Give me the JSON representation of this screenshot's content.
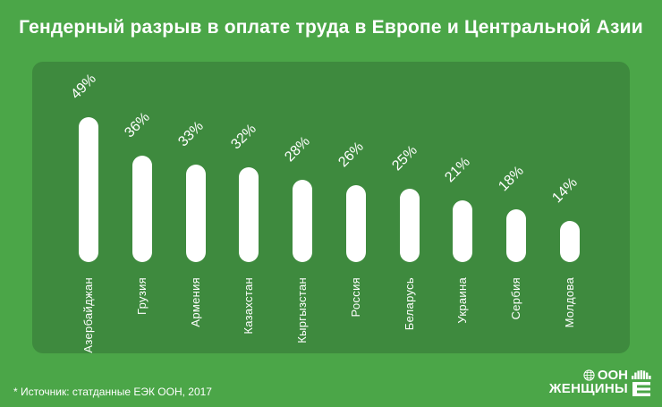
{
  "title": "Гендерный разрыв в оплате труда в Европе и Центральной Азии",
  "source_note": "* Источник: статданные ЕЭК ООН, 2017",
  "logo": {
    "line1": "ООН",
    "line2": "ЖЕНЩИНЫ",
    "emblem_icon": "un-globe-icon",
    "mark_icon": "un-women-mark-icon"
  },
  "colors": {
    "background": "#4BA648",
    "panel": "#3E8A3E",
    "bar": "#FFFFFF",
    "text": "#FFFFFF"
  },
  "chart_data": {
    "type": "bar",
    "title": "Гендерный разрыв в оплате труда в Европе и Центральной Азии",
    "categories": [
      "Азербайджан",
      "Грузия",
      "Армения",
      "Казахстан",
      "Кыргызстан",
      "Россия",
      "Беларусь",
      "Украина",
      "Сербия",
      "Молдова"
    ],
    "values": [
      49,
      36,
      33,
      32,
      28,
      26,
      25,
      21,
      18,
      14
    ],
    "value_suffix": "%",
    "xlabel": "",
    "ylabel": "",
    "ylim": [
      0,
      50
    ],
    "grid": false,
    "legend": "none",
    "bar_color": "#FFFFFF",
    "value_label_rotation_deg": -45,
    "category_label_rotation_deg": -90
  }
}
